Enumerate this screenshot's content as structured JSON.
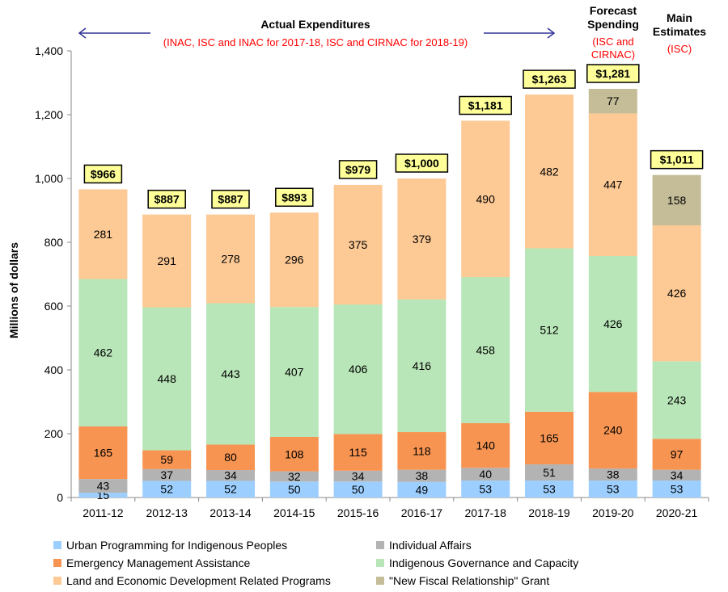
{
  "chart_data": {
    "type": "bar",
    "stacked": true,
    "ylabel": "Millions  of dollars",
    "ylim": [
      0,
      1400
    ],
    "yticks": [
      0,
      200,
      400,
      600,
      800,
      1000,
      1200,
      1400
    ],
    "ytick_labels": [
      "0",
      "200",
      "400",
      "600",
      "800",
      "1,000",
      "1,200",
      "1,400"
    ],
    "categories": [
      "2011-12",
      "2012-13",
      "2013-14",
      "2014-15",
      "2015-16",
      "2016-17",
      "2017-18",
      "2018-19",
      "2019-20",
      "2020-21"
    ],
    "series": [
      {
        "name": "Urban Programming for Indigenous Peoples",
        "color": "#9ccfff",
        "values": [
          15,
          52,
          52,
          50,
          50,
          49,
          53,
          53,
          53,
          53
        ]
      },
      {
        "name": "Individual Affairs",
        "color": "#b3b3b3",
        "values": [
          43,
          37,
          34,
          32,
          34,
          38,
          40,
          51,
          38,
          34
        ]
      },
      {
        "name": "Emergency Management Assistance",
        "color": "#f79452",
        "values": [
          165,
          59,
          80,
          108,
          115,
          118,
          140,
          165,
          240,
          97
        ]
      },
      {
        "name": "Indigenous Governance and Capacity",
        "color": "#b8e6b8",
        "values": [
          462,
          448,
          443,
          407,
          406,
          416,
          458,
          512,
          426,
          243
        ]
      },
      {
        "name": "Land and Economic Development Related Programs",
        "color": "#fdc994",
        "values": [
          281,
          291,
          278,
          296,
          375,
          379,
          490,
          482,
          447,
          426
        ]
      },
      {
        "name": "\"New Fiscal Relationship\" Grant",
        "color": "#c4bd97",
        "values": [
          0,
          0,
          0,
          0,
          0,
          0,
          0,
          0,
          77,
          158
        ]
      }
    ],
    "totals": [
      "$966",
      "$887",
      "$887",
      "$893",
      "$979",
      "$1,000",
      "$1,181",
      "$1,263",
      "$1,281",
      "$1,011"
    ],
    "annotations": {
      "actual_title": "Actual Expenditures",
      "actual_sub": "(INAC, ISC and INAC for 2017-18, ISC and CIRNAC for 2018-19)",
      "forecast_title": [
        "Forecast",
        "Spending"
      ],
      "forecast_sub": [
        "(ISC and",
        "CIRNAC)"
      ],
      "main_title": [
        "Main",
        "Estimates"
      ],
      "main_sub": "(ISC)"
    },
    "legend_placement": "bottom",
    "grid": false
  }
}
